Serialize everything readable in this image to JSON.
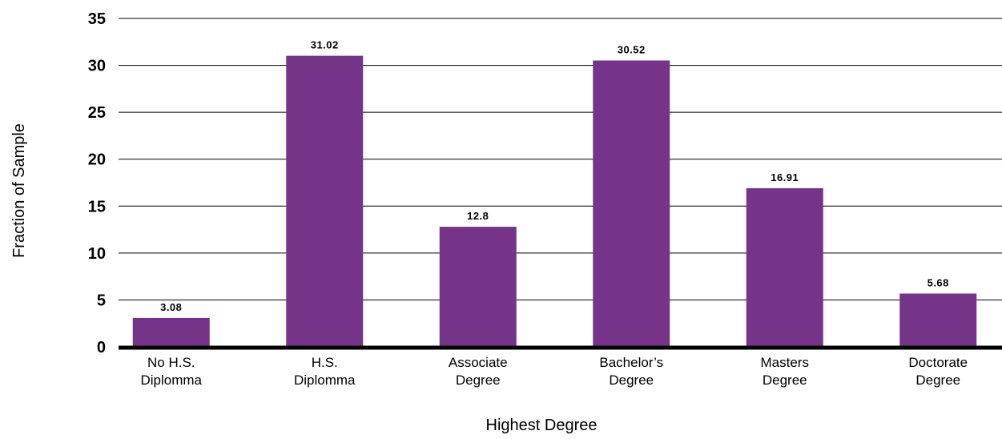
{
  "chart_data": {
    "type": "bar",
    "categories": [
      [
        "No H.S.",
        "Diplomma"
      ],
      [
        "H.S.",
        "Diplomma"
      ],
      [
        "Associate",
        "Degree"
      ],
      [
        "Bachelor’s",
        "Degree"
      ],
      [
        "Masters",
        "Degree"
      ],
      [
        "Doctorate",
        "Degree"
      ]
    ],
    "values": [
      3.08,
      31.02,
      12.8,
      30.52,
      16.91,
      5.68
    ],
    "data_labels": [
      "3.08",
      "31.02",
      "12.8",
      "30.52",
      "16.91",
      "5.68"
    ],
    "title": "",
    "xlabel": "Highest Degree",
    "ylabel": "Fraction of Sample",
    "ylim": [
      0,
      35
    ],
    "yticks": [
      0,
      5,
      10,
      15,
      20,
      25,
      30,
      35
    ],
    "grid": "horizontal",
    "legend": "none",
    "bar_color": "#763489",
    "grid_color": "#000000"
  }
}
